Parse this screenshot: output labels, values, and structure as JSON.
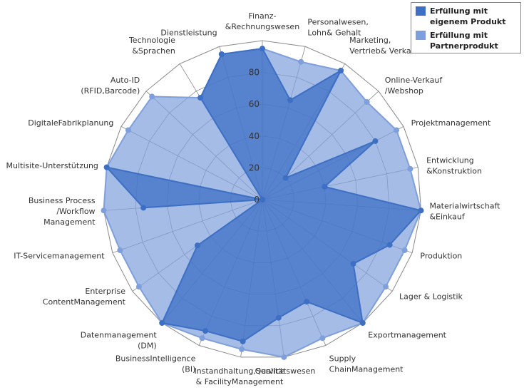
{
  "chart_data": {
    "type": "radar",
    "categories": [
      "Finanz-\n&Rechnungswesen",
      "Personalwesen,\nLohn& Gehalt",
      "Marketing,\nVertrieb& Verkauf",
      "Online-Verkauf\n/Webshop",
      "Projektmanagement",
      "Entwicklung\n&Konstruktion",
      "Materialwirtschaft\n&Einkauf",
      "Produktion",
      "Lager & Logistik",
      "Exportmanagement",
      "Supply\nChainManagement",
      "Qualitätswesen",
      "Instandhaltung,Service\n& FacilityManagement",
      "BusinessIntelligence\n(BI)",
      "Datenmanagement\n(DM)",
      "Enterprise\nContentManagement",
      "IT-Servicemanagement",
      "Business Process\n/Workflow\nManagement",
      "Multisite-Unterstützung",
      "DigitaleFabrikplanung",
      "Auto-ID\n(RFID,Barcode)",
      "Technologie\n&Sprachen",
      "Dienstleistung"
    ],
    "series": [
      {
        "name": "Erfüllung mit eigenem Produkt",
        "color": "#3D6FC4",
        "values": [
          95,
          65,
          95,
          20,
          80,
          40,
          100,
          85,
          70,
          100,
          70,
          75,
          90,
          90,
          100,
          50,
          0,
          75,
          100,
          0,
          0,
          75,
          95
        ]
      },
      {
        "name": "Erfüllung mit Partnerprodukt",
        "color": "#7E9FDC",
        "values": [
          95,
          90,
          95,
          90,
          95,
          95,
          100,
          95,
          95,
          100,
          95,
          100,
          95,
          95,
          100,
          95,
          95,
          100,
          100,
          95,
          95,
          75,
          95
        ]
      }
    ],
    "r_ticks": [
      0,
      20,
      40,
      60,
      80
    ],
    "r_range": [
      0,
      100
    ],
    "legend_position": "top-right"
  }
}
